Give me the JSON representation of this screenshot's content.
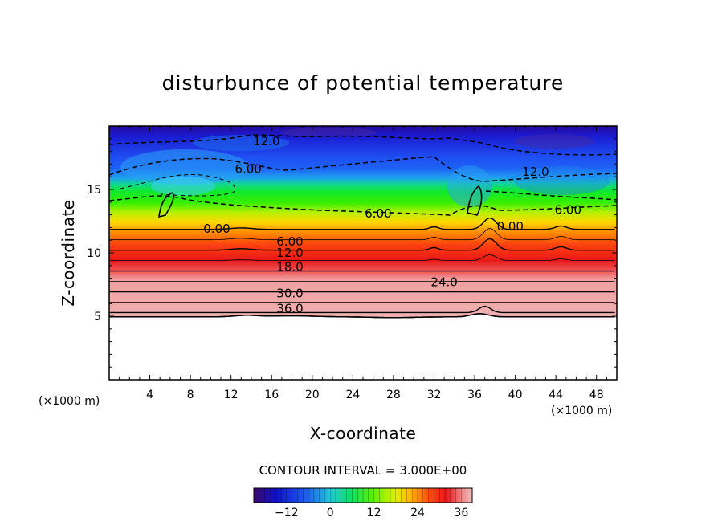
{
  "chart_data": {
    "type": "heatmap",
    "title": "disturbunce of potential temperature",
    "xlabel": "X-coordinate",
    "ylabel": "Z-coordinate",
    "x_unit": "(×1000 m)",
    "y_unit": "(×1000 m)",
    "xlim": [
      0,
      50
    ],
    "ylim": [
      0,
      20
    ],
    "x_ticks": [
      4,
      8,
      12,
      16,
      20,
      24,
      28,
      32,
      36,
      40,
      44,
      48
    ],
    "y_ticks": [
      5,
      10,
      15
    ],
    "contour_interval": "CONTOUR INTERVAL = 3.000E+00",
    "colorbar": {
      "range": [
        -21,
        39
      ],
      "tick_values": [
        -12,
        0,
        12,
        24,
        36
      ],
      "tick_labels": [
        "−12",
        "0",
        "12",
        "24",
        "36"
      ]
    },
    "contour_labels": [
      {
        "text": "12.0",
        "x": 15.5,
        "y": 18.8
      },
      {
        "text": "6.00",
        "x": 13.7,
        "y": 16.6
      },
      {
        "text": "12.0",
        "x": 42.0,
        "y": 16.4
      },
      {
        "text": "6.00",
        "x": 26.5,
        "y": 13.1
      },
      {
        "text": "6.00",
        "x": 45.2,
        "y": 13.4
      },
      {
        "text": "0.00",
        "x": 10.6,
        "y": 11.9
      },
      {
        "text": "0.00",
        "x": 39.5,
        "y": 12.1
      },
      {
        "text": "6.00",
        "x": 17.8,
        "y": 10.9
      },
      {
        "text": "12.0",
        "x": 17.8,
        "y": 10.0
      },
      {
        "text": "18.0",
        "x": 17.8,
        "y": 8.9
      },
      {
        "text": "24.0",
        "x": 33.0,
        "y": 7.7
      },
      {
        "text": "30.0",
        "x": 17.8,
        "y": 6.8
      },
      {
        "text": "36.0",
        "x": 17.8,
        "y": 5.6
      }
    ]
  }
}
